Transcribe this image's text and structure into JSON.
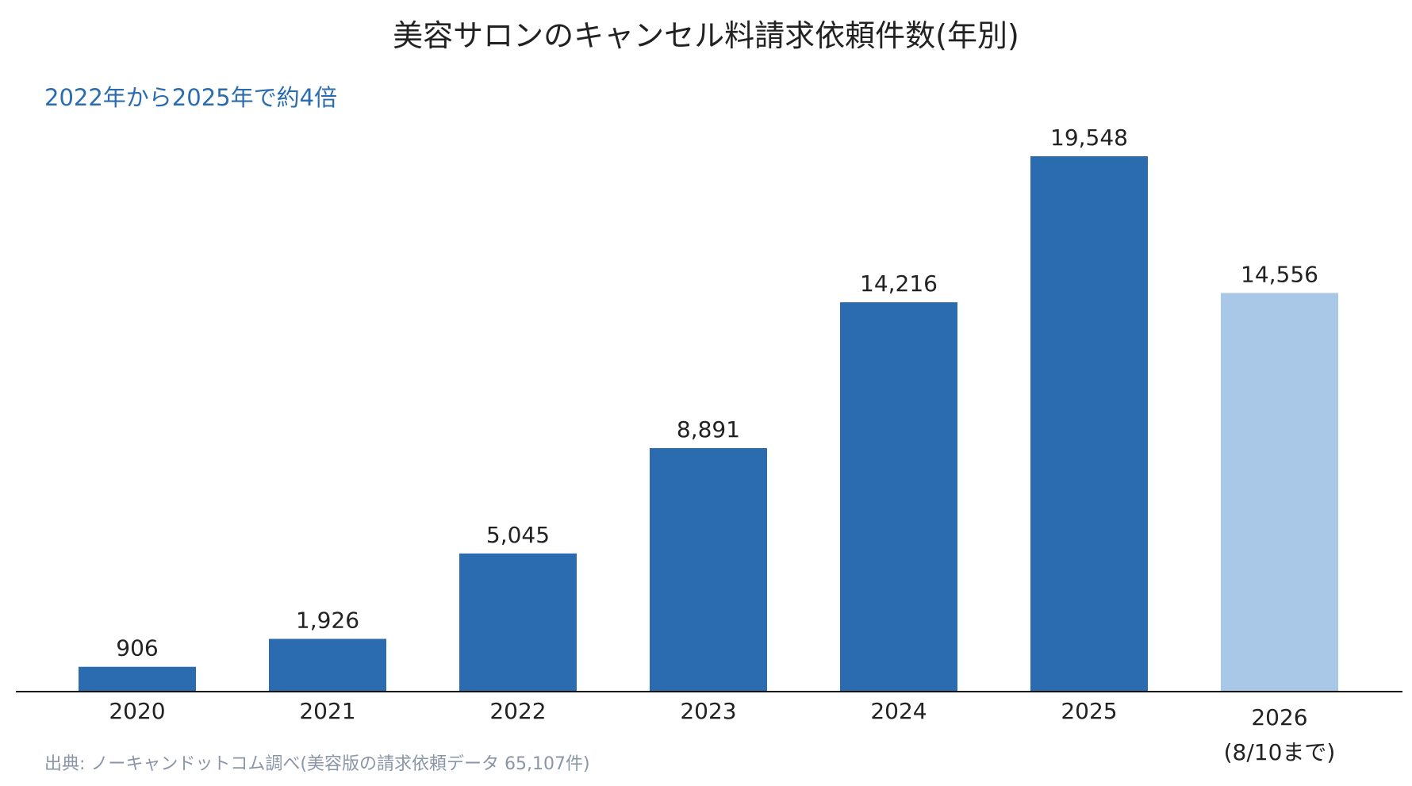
{
  "title": "美容サロンのキャンセル料請求依頼件数(年別)",
  "subtitle": "2022年から2025年で約4倍",
  "source": "出典: ノーキャンドットコム調べ(美容版の請求依頼データ 65,107件)",
  "colors": {
    "bar": "#2b6cb0",
    "bar_partial": "#a9c7e6",
    "title": "#222222",
    "subtitle": "#2b6cb0",
    "source": "#8a96a8",
    "axis": "#111111",
    "label": "#222222"
  },
  "chart_data": {
    "type": "bar",
    "categories": [
      "2020",
      "2021",
      "2022",
      "2023",
      "2024",
      "2025",
      "2026"
    ],
    "category_sublabels": [
      "",
      "",
      "",
      "",
      "",
      "",
      "(8/10まで)"
    ],
    "values": [
      906,
      1926,
      5045,
      8891,
      14216,
      19548,
      14556
    ],
    "value_labels": [
      "906",
      "1,926",
      "5,045",
      "8,891",
      "14,216",
      "19,548",
      "14,556"
    ],
    "highlight_partial_index": 6,
    "ylim": [
      0,
      22000
    ],
    "grid": false,
    "legend": "none",
    "xlabel": "",
    "ylabel": ""
  }
}
